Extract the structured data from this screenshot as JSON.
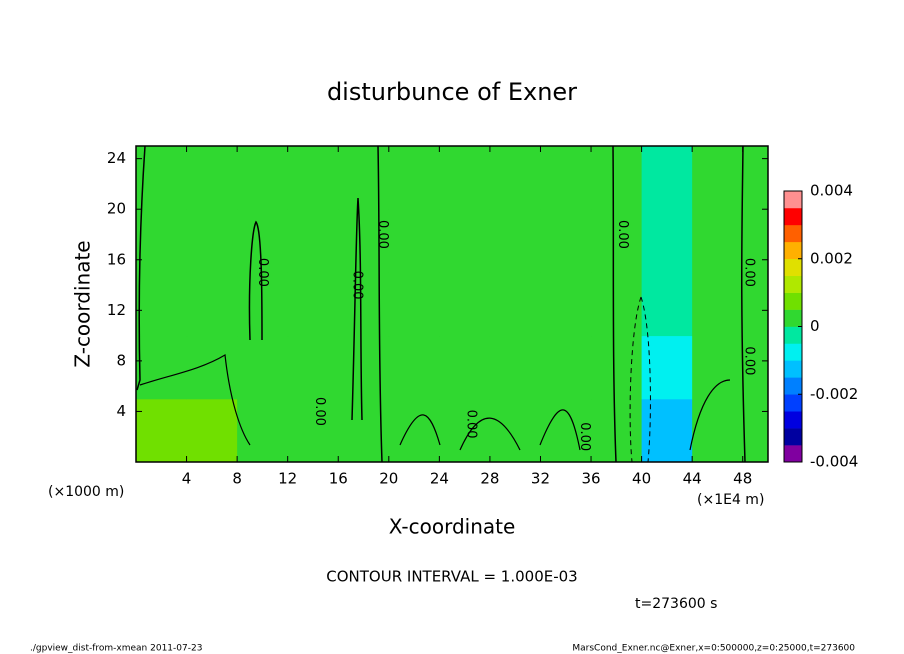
{
  "chart_data": {
    "type": "contour",
    "title": "disturbunce of Exner",
    "xlabel": "X-coordinate",
    "ylabel": "Z-coordinate",
    "x_unit_left": "(×1000 m)",
    "x_unit_right": "(×1E4 m)",
    "xlim": [
      0,
      50
    ],
    "xticks": [
      4,
      8,
      12,
      16,
      20,
      24,
      28,
      32,
      36,
      40,
      44,
      48
    ],
    "ylim": [
      0,
      25
    ],
    "yticks": [
      4,
      8,
      12,
      16,
      20,
      24
    ],
    "x": [
      2,
      6,
      10,
      14,
      18,
      22,
      26,
      30,
      34,
      38,
      42,
      46,
      50
    ],
    "z": [
      2.5,
      7.5,
      12.5,
      17.5,
      22.5
    ],
    "values": [
      [
        0.0006,
        0.0005,
        0.0003,
        0.0002,
        0.0003,
        0.0002,
        0.0003,
        0.0003,
        0.0002,
        0.0001,
        -0.0012,
        0.0001,
        0.0002
      ],
      [
        0.0003,
        0.0002,
        0.0001,
        0.0001,
        0.0003,
        0.0003,
        0.0003,
        0.0003,
        0.0003,
        0.0001,
        -0.0006,
        0.0001,
        0.0001
      ],
      [
        0.0001,
        0.0001,
        0.0001,
        0.0001,
        0.0002,
        0.0002,
        0.0002,
        0.0002,
        0.0001,
        0.0001,
        -0.0003,
        0.0001,
        0.0001
      ],
      [
        0.0001,
        0.0001,
        0.0001,
        0.0001,
        0.0001,
        0.0001,
        0.0001,
        0.0001,
        0.0001,
        0.0001,
        -0.0001,
        0.0001,
        0.0001
      ],
      [
        0.0001,
        0.0001,
        0.0001,
        0.0001,
        0.0001,
        0.0001,
        0.0001,
        0.0001,
        0.0001,
        0.0001,
        -0.0001,
        0.0001,
        0.0001
      ]
    ],
    "colorbar_lim": [
      -0.004,
      0.004
    ],
    "colorbar_ticks": [
      0.004,
      0.002,
      0,
      -0.002,
      -0.004
    ],
    "colors": [
      "#8000a0",
      "#0000a0",
      "#0000e0",
      "#0040ff",
      "#0080ff",
      "#00c0ff",
      "#00f0f0",
      "#00e8a0",
      "#30d830",
      "#70e000",
      "#b0e800",
      "#e0e000",
      "#ffb000",
      "#ff6000",
      "#ff0000",
      "#ff9090"
    ],
    "contour_labels": [
      {
        "text": "0.00",
        "x": 10,
        "z": 15
      },
      {
        "text": "0.00",
        "x": 14.5,
        "z": 4
      },
      {
        "text": "0.00",
        "x": 17.5,
        "z": 14
      },
      {
        "text": "0.00",
        "x": 19.5,
        "z": 18
      },
      {
        "text": "0.00",
        "x": 26.5,
        "z": 3
      },
      {
        "text": "0.00",
        "x": 35.5,
        "z": 2
      },
      {
        "text": "0.00",
        "x": 38.5,
        "z": 18
      },
      {
        "text": "0.00",
        "x": 48.5,
        "z": 15
      },
      {
        "text": "0.00",
        "x": 48.5,
        "z": 8
      }
    ],
    "contour_interval": "CONTOUR INTERVAL = 1.000E-03",
    "time": "t=273600 s",
    "footer_left": "./gpview_dist-from-xmean  2011-07-23",
    "footer_right": "MarsCond_Exner.nc@Exner,x=0:500000,z=0:25000,t=273600"
  }
}
